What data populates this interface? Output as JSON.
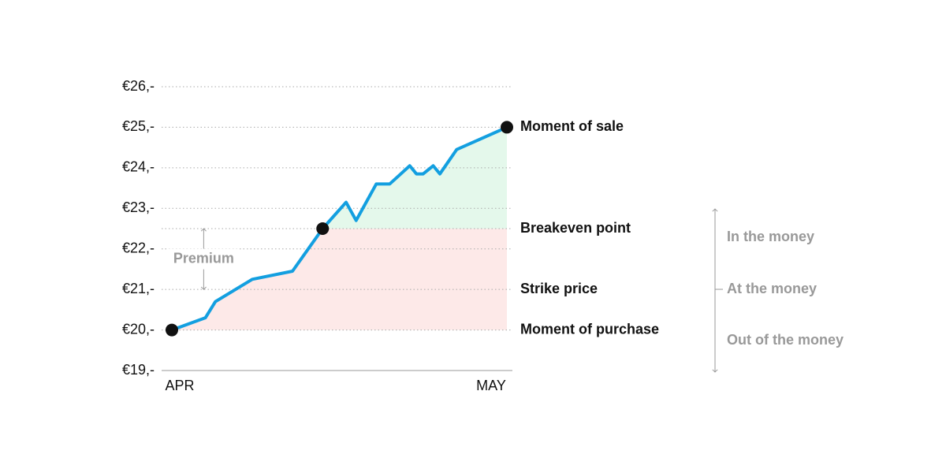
{
  "chart_data": {
    "type": "line",
    "x": [
      0,
      10,
      13,
      24,
      36,
      45,
      52,
      55,
      61,
      65,
      71,
      73,
      75,
      78,
      80,
      85,
      100
    ],
    "series": [
      {
        "color": "#139fe0",
        "values": [
          20,
          20.3,
          20.7,
          21.25,
          21.45,
          22.5,
          23.15,
          22.7,
          23.6,
          23.6,
          24.05,
          23.85,
          23.85,
          24.05,
          23.85,
          24.45,
          25
        ]
      }
    ],
    "xlim": [
      0,
      100
    ],
    "xticks": [
      {
        "value": 0,
        "label": "APR"
      },
      {
        "value": 100,
        "label": "MAY"
      }
    ],
    "ylim": [
      19,
      26
    ],
    "yticks": [
      {
        "value": 19,
        "label": "€19,-"
      },
      {
        "value": 20,
        "label": "€20,-"
      },
      {
        "value": 21,
        "label": "€21,-"
      },
      {
        "value": 22,
        "label": "€22,-"
      },
      {
        "value": 23,
        "label": "€23,-"
      },
      {
        "value": 24,
        "label": "€24,-"
      },
      {
        "value": 25,
        "label": "€25,-"
      },
      {
        "value": 26,
        "label": "€26,-"
      }
    ],
    "grid": true,
    "reference_line": {
      "value": 22.5
    },
    "markers": [
      {
        "x": 0,
        "y": 20
      },
      {
        "x": 45,
        "y": 22.5
      },
      {
        "x": 100,
        "y": 25
      }
    ],
    "annotations": [
      {
        "text": "Moment of sale",
        "y": 25
      },
      {
        "text": "Breakeven point",
        "y": 22.5
      },
      {
        "text": "Strike price",
        "y": 21
      },
      {
        "text": "Moment of purchase",
        "y": 20
      }
    ],
    "premium": {
      "text": "Premium",
      "x": 9.5,
      "from": 22.5,
      "to": 21
    },
    "moneyness": [
      "In the money",
      "At the money",
      "Out of the money"
    ],
    "profit_color": "#e4f8eb",
    "loss_color": "#fde9e8"
  }
}
